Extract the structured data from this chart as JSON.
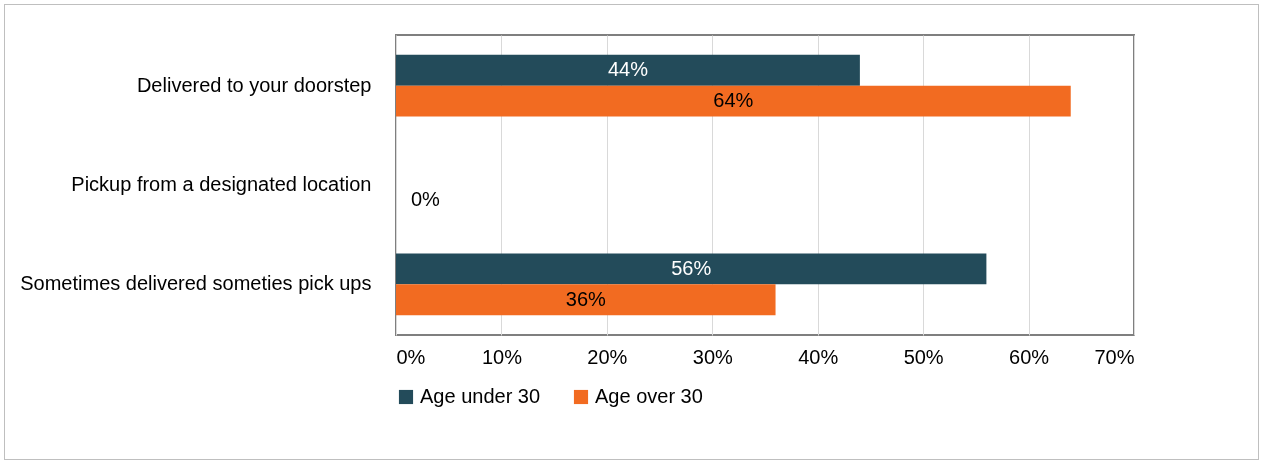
{
  "chart_data": {
    "type": "bar",
    "orientation": "horizontal",
    "categories": [
      "Delivered to your doorstep",
      "Pickup from a designated location",
      "Sometimes delivered someties pick ups"
    ],
    "series": [
      {
        "name": "Age under 30",
        "color": "#234b5a",
        "values": [
          44,
          0,
          56
        ],
        "value_labels": [
          "44%",
          null,
          "56%"
        ]
      },
      {
        "name": "Age over 30",
        "color": "#f26b21",
        "values": [
          64,
          0,
          36
        ],
        "value_labels": [
          "64%",
          "0%",
          "36%"
        ]
      }
    ],
    "xlim": [
      0,
      70
    ],
    "xticks": [
      {
        "value": 0,
        "label": "0%"
      },
      {
        "value": 10,
        "label": "10%"
      },
      {
        "value": 20,
        "label": "20%"
      },
      {
        "value": 30,
        "label": "30%"
      },
      {
        "value": 40,
        "label": "40%"
      },
      {
        "value": 50,
        "label": "50%"
      },
      {
        "value": 60,
        "label": "60%"
      },
      {
        "value": 70,
        "label": "70%"
      }
    ],
    "grid": "x",
    "legend": "bottom"
  }
}
